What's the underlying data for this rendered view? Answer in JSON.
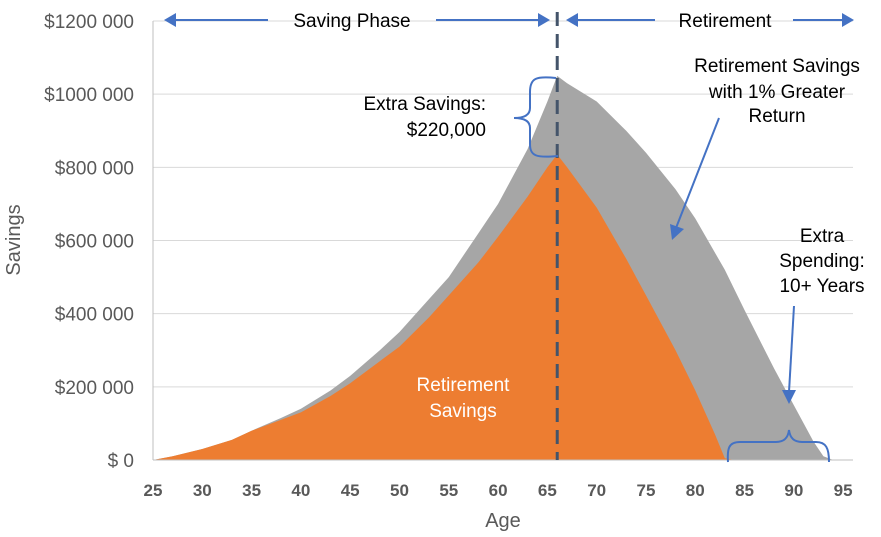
{
  "chart_data": {
    "type": "area",
    "xlabel": "Age",
    "ylabel": "Savings",
    "xlim": [
      25,
      96
    ],
    "ylim": [
      0,
      1200000
    ],
    "grid": true,
    "x_ticks": [
      25,
      30,
      35,
      40,
      45,
      50,
      55,
      60,
      65,
      70,
      75,
      80,
      85,
      90,
      95
    ],
    "y_ticks": [
      {
        "value": 0,
        "label": "$ 0"
      },
      {
        "value": 200000,
        "label": "$200 000"
      },
      {
        "value": 400000,
        "label": "$400 000"
      },
      {
        "value": 600000,
        "label": "$600 000"
      },
      {
        "value": 800000,
        "label": "$800 000"
      },
      {
        "value": 1000000,
        "label": "$1000 000"
      },
      {
        "value": 1200000,
        "label": "$1200 000"
      }
    ],
    "series": [
      {
        "color": "#a6a6a6",
        "x": [
          25,
          27,
          30,
          33,
          35,
          38,
          40,
          43,
          45,
          48,
          50,
          53,
          55,
          58,
          60,
          63,
          65,
          66,
          67,
          70,
          73,
          75,
          78,
          80,
          83,
          85,
          88,
          90,
          92,
          93,
          94,
          95,
          96
        ],
        "y": [
          0,
          10000,
          30000,
          55000,
          80000,
          115000,
          140000,
          190000,
          230000,
          300000,
          350000,
          440000,
          500000,
          620000,
          700000,
          850000,
          980000,
          1050000,
          1030000,
          980000,
          900000,
          840000,
          740000,
          660000,
          520000,
          410000,
          250000,
          150000,
          50000,
          10000,
          0,
          0,
          0
        ]
      },
      {
        "color": "#ed7d31",
        "x": [
          25,
          27,
          30,
          33,
          35,
          38,
          40,
          43,
          45,
          48,
          50,
          53,
          55,
          58,
          60,
          63,
          65,
          66,
          67,
          70,
          73,
          75,
          78,
          80,
          82,
          83,
          84,
          90,
          96
        ],
        "y": [
          0,
          10000,
          30000,
          55000,
          80000,
          110000,
          130000,
          175000,
          210000,
          270000,
          310000,
          390000,
          450000,
          540000,
          610000,
          720000,
          800000,
          835000,
          800000,
          690000,
          550000,
          450000,
          300000,
          190000,
          70000,
          5000,
          0,
          0,
          0
        ]
      }
    ],
    "divider_age": 66,
    "annotations": {
      "saving_phase": "Saving Phase",
      "retirement": "Retirement",
      "extra_savings_line1": "Extra Savings:",
      "extra_savings_line2": "$220,000",
      "higher_line1": "Retirement Savings",
      "higher_line2": "with 1% Greater",
      "higher_line3": "Return",
      "extra_spending_line1": "Extra",
      "extra_spending_line2": "Spending:",
      "extra_spending_line3": "10+ Years",
      "base_line1": "Retirement",
      "base_line2": "Savings"
    },
    "colors": {
      "arrow": "#4472c4",
      "divider": "#44546a"
    }
  }
}
